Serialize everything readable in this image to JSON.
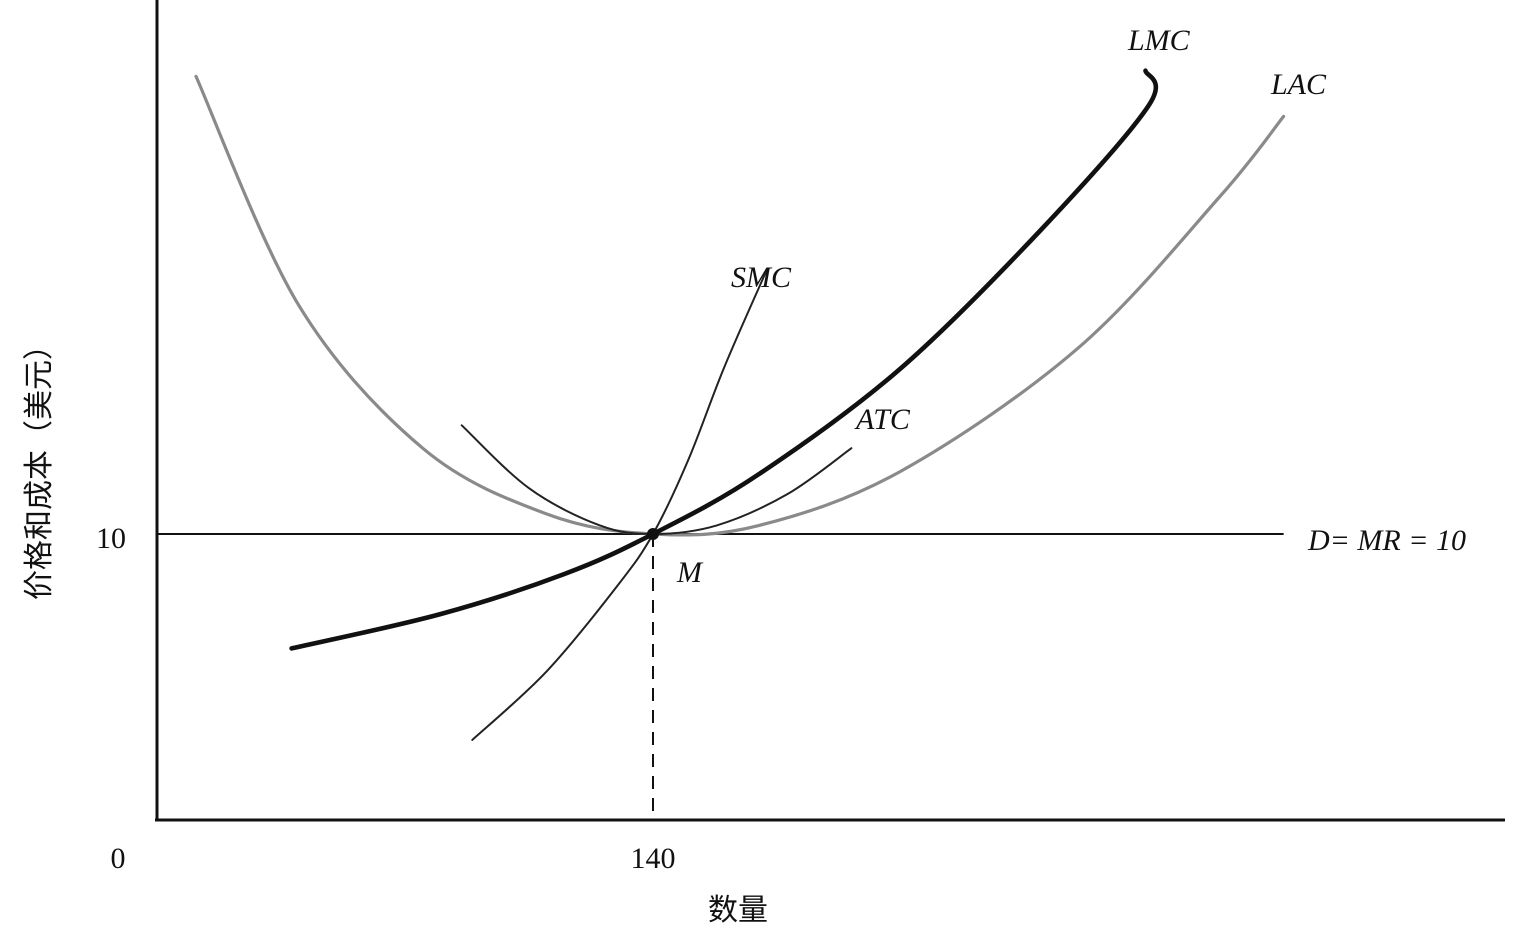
{
  "chart_data": {
    "type": "line",
    "title": "",
    "xlabel": "数量",
    "ylabel": "价格和成本（美元）",
    "origin_label": "0",
    "x_ticks": [
      {
        "value": 140,
        "label": "140"
      }
    ],
    "y_ticks": [
      {
        "value": 10,
        "label": "10"
      }
    ],
    "xlim": [
      0,
      380
    ],
    "ylim": [
      0,
      28.6
    ],
    "grid": false,
    "legend": "none",
    "series": [
      {
        "name": "LAC",
        "points": [
          [
            11,
            26
          ],
          [
            40,
            18
          ],
          [
            75,
            13
          ],
          [
            110,
            10.7
          ],
          [
            140,
            10
          ],
          [
            170,
            10.3
          ],
          [
            210,
            12.2
          ],
          [
            260,
            16.5
          ],
          [
            300,
            21.8
          ],
          [
            318,
            24.6
          ]
        ],
        "color": "#8a8a8a",
        "weight": "medium"
      },
      {
        "name": "LMC",
        "points": [
          [
            38,
            6
          ],
          [
            80,
            7.2
          ],
          [
            115,
            8.6
          ],
          [
            140,
            10
          ],
          [
            170,
            12.1
          ],
          [
            210,
            15.8
          ],
          [
            250,
            20.7
          ],
          [
            280,
            25
          ],
          [
            279,
            26.2
          ]
        ],
        "color": "#111111",
        "weight": "bold"
      },
      {
        "name": "ATC",
        "points": [
          [
            86,
            13.8
          ],
          [
            105,
            11.6
          ],
          [
            125,
            10.3
          ],
          [
            140,
            10
          ],
          [
            158,
            10.3
          ],
          [
            178,
            11.4
          ],
          [
            196,
            13
          ]
        ],
        "color": "#222222",
        "weight": "thin"
      },
      {
        "name": "SMC",
        "points": [
          [
            89,
            2.8
          ],
          [
            110,
            5.2
          ],
          [
            130,
            8.2
          ],
          [
            140,
            10
          ],
          [
            150,
            12.6
          ],
          [
            160,
            15.8
          ],
          [
            172,
            19.2
          ]
        ],
        "color": "#222222",
        "weight": "thin"
      }
    ],
    "horizontal_line": {
      "name": "D= MR = 10",
      "y": 10,
      "x_end": 318
    },
    "vertical_dashed": {
      "x": 140
    },
    "point": {
      "name": "M",
      "x": 140,
      "y": 10
    }
  }
}
